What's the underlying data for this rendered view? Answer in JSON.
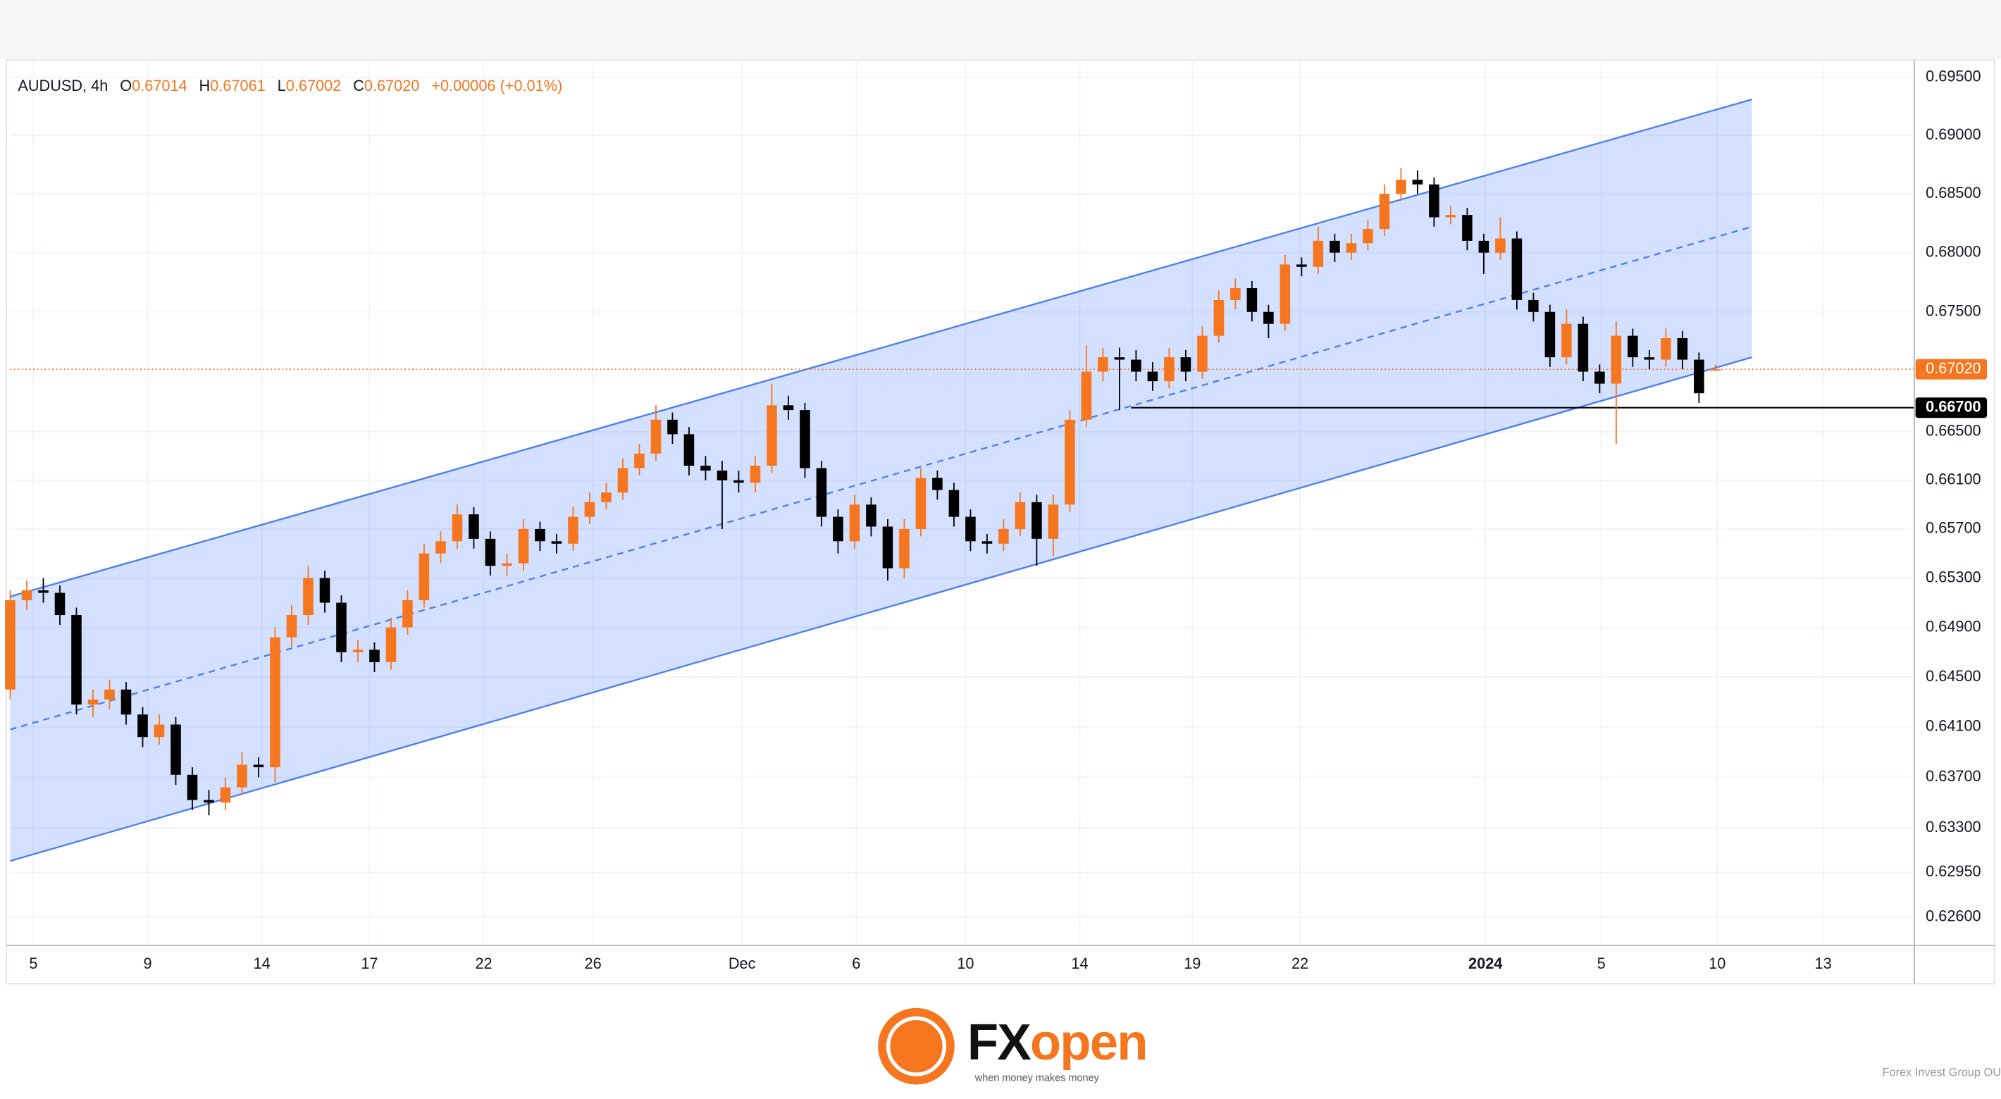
{
  "chart_data": {
    "type": "candlestick",
    "legend": {
      "symbol": "AUDUSD, 4h",
      "items": [
        {
          "key": "O",
          "value": "0.67014"
        },
        {
          "key": "H",
          "value": "0.67061"
        },
        {
          "key": "L",
          "value": "0.67002"
        },
        {
          "key": "C",
          "value": "0.67020"
        }
      ],
      "change": "+0.00006 (+0.01%)"
    },
    "x": [
      0,
      1,
      2,
      3,
      4,
      5,
      6,
      7,
      8,
      9,
      10,
      11,
      12,
      13,
      14,
      15,
      16,
      17,
      18,
      19,
      20,
      21,
      22,
      23,
      24,
      25,
      26,
      27,
      28,
      29,
      30,
      31,
      32,
      33,
      34,
      35,
      36,
      37,
      38,
      39,
      40,
      41,
      42,
      43,
      44,
      45,
      46,
      47,
      48,
      49,
      50,
      51,
      52,
      53,
      54,
      55,
      56,
      57,
      58,
      59,
      60,
      61,
      62,
      63,
      64,
      65,
      66,
      67,
      68,
      69,
      70,
      71,
      72,
      73,
      74,
      75,
      76,
      77,
      78,
      79,
      80,
      81,
      82,
      83,
      84,
      85,
      86,
      87,
      88,
      89,
      90,
      91,
      92,
      93,
      94,
      95,
      96,
      97,
      98,
      99,
      100,
      101,
      102,
      103
    ],
    "open": [
      0.644,
      0.6512,
      0.652,
      0.6518,
      0.65,
      0.6428,
      0.6432,
      0.644,
      0.642,
      0.6402,
      0.6412,
      0.6372,
      0.6352,
      0.635,
      0.6362,
      0.638,
      0.6378,
      0.6482,
      0.65,
      0.653,
      0.651,
      0.647,
      0.6472,
      0.6462,
      0.649,
      0.6512,
      0.655,
      0.656,
      0.6582,
      0.6562,
      0.654,
      0.6542,
      0.657,
      0.656,
      0.6558,
      0.658,
      0.6592,
      0.66,
      0.662,
      0.6632,
      0.666,
      0.6648,
      0.6622,
      0.6618,
      0.661,
      0.6608,
      0.6622,
      0.6672,
      0.6668,
      0.662,
      0.658,
      0.656,
      0.659,
      0.6572,
      0.6538,
      0.657,
      0.6612,
      0.6602,
      0.658,
      0.656,
      0.6558,
      0.657,
      0.6592,
      0.6562,
      0.659,
      0.666,
      0.67,
      0.6712,
      0.671,
      0.67,
      0.6692,
      0.6712,
      0.67,
      0.673,
      0.676,
      0.677,
      0.675,
      0.674,
      0.679,
      0.6788,
      0.681,
      0.68,
      0.6808,
      0.682,
      0.685,
      0.6862,
      0.6858,
      0.683,
      0.6832,
      0.681,
      0.68,
      0.6812,
      0.676,
      0.675,
      0.6712,
      0.674,
      0.67,
      0.669,
      0.673,
      0.6712,
      0.671,
      0.6728,
      0.671,
      0.67014
    ],
    "high": [
      0.652,
      0.6528,
      0.653,
      0.6524,
      0.6506,
      0.644,
      0.6448,
      0.6446,
      0.6426,
      0.642,
      0.6418,
      0.6378,
      0.636,
      0.637,
      0.639,
      0.6386,
      0.649,
      0.6508,
      0.654,
      0.6536,
      0.6516,
      0.648,
      0.6478,
      0.6498,
      0.652,
      0.6558,
      0.6568,
      0.659,
      0.6588,
      0.6568,
      0.655,
      0.6578,
      0.6576,
      0.6566,
      0.6588,
      0.66,
      0.6608,
      0.6628,
      0.664,
      0.6672,
      0.6666,
      0.6654,
      0.663,
      0.6626,
      0.6618,
      0.663,
      0.669,
      0.668,
      0.6674,
      0.6626,
      0.6586,
      0.6598,
      0.6596,
      0.6578,
      0.6578,
      0.662,
      0.6618,
      0.6608,
      0.6586,
      0.6566,
      0.6578,
      0.66,
      0.6598,
      0.6598,
      0.6668,
      0.6722,
      0.672,
      0.672,
      0.6718,
      0.6708,
      0.672,
      0.6718,
      0.6738,
      0.6768,
      0.6778,
      0.6776,
      0.6756,
      0.6798,
      0.6796,
      0.6822,
      0.6816,
      0.6816,
      0.6828,
      0.6858,
      0.6872,
      0.687,
      0.6864,
      0.684,
      0.6838,
      0.6816,
      0.683,
      0.6818,
      0.6766,
      0.6756,
      0.6752,
      0.6746,
      0.6706,
      0.6742,
      0.6736,
      0.6718,
      0.6736,
      0.6734,
      0.6716,
      0.67061
    ],
    "low": [
      0.6432,
      0.6504,
      0.651,
      0.6492,
      0.642,
      0.6418,
      0.6424,
      0.6412,
      0.6394,
      0.6396,
      0.6364,
      0.6344,
      0.634,
      0.6344,
      0.6356,
      0.637,
      0.6366,
      0.6474,
      0.6492,
      0.6502,
      0.6462,
      0.6462,
      0.6454,
      0.6456,
      0.6484,
      0.6506,
      0.6542,
      0.6554,
      0.6554,
      0.6532,
      0.6532,
      0.6536,
      0.6552,
      0.655,
      0.6552,
      0.6574,
      0.6586,
      0.6594,
      0.6614,
      0.6626,
      0.664,
      0.6614,
      0.661,
      0.657,
      0.66,
      0.66,
      0.6616,
      0.666,
      0.6612,
      0.6572,
      0.655,
      0.6554,
      0.6564,
      0.6528,
      0.653,
      0.6564,
      0.6594,
      0.6572,
      0.6552,
      0.655,
      0.6552,
      0.6564,
      0.654,
      0.6548,
      0.6584,
      0.6654,
      0.6692,
      0.6668,
      0.6692,
      0.6684,
      0.6686,
      0.6692,
      0.6694,
      0.6724,
      0.6752,
      0.6742,
      0.6728,
      0.6734,
      0.678,
      0.6782,
      0.6792,
      0.6794,
      0.6802,
      0.6814,
      0.6844,
      0.685,
      0.6822,
      0.6824,
      0.6802,
      0.6782,
      0.6794,
      0.6752,
      0.6742,
      0.6704,
      0.6706,
      0.6692,
      0.6682,
      0.664,
      0.6704,
      0.6702,
      0.6704,
      0.6702,
      0.6674,
      0.67002
    ],
    "close": [
      0.6512,
      0.652,
      0.6518,
      0.65,
      0.6428,
      0.6432,
      0.644,
      0.642,
      0.6402,
      0.6412,
      0.6372,
      0.6352,
      0.635,
      0.6362,
      0.638,
      0.6378,
      0.6482,
      0.65,
      0.653,
      0.651,
      0.647,
      0.6472,
      0.6462,
      0.649,
      0.6512,
      0.655,
      0.656,
      0.6582,
      0.6562,
      0.654,
      0.6542,
      0.657,
      0.656,
      0.6558,
      0.658,
      0.6592,
      0.66,
      0.662,
      0.6632,
      0.666,
      0.6648,
      0.6622,
      0.6618,
      0.661,
      0.6608,
      0.6622,
      0.6672,
      0.6668,
      0.662,
      0.658,
      0.656,
      0.659,
      0.6572,
      0.6538,
      0.657,
      0.6612,
      0.6602,
      0.658,
      0.656,
      0.6558,
      0.657,
      0.6592,
      0.6562,
      0.659,
      0.666,
      0.67,
      0.6712,
      0.671,
      0.67,
      0.6692,
      0.6712,
      0.67,
      0.673,
      0.676,
      0.677,
      0.675,
      0.674,
      0.679,
      0.6788,
      0.681,
      0.68,
      0.6808,
      0.682,
      0.685,
      0.6862,
      0.6858,
      0.683,
      0.6832,
      0.681,
      0.68,
      0.6812,
      0.676,
      0.675,
      0.6712,
      0.674,
      0.67,
      0.669,
      0.673,
      0.6712,
      0.671,
      0.6728,
      0.671,
      0.6682,
      0.6702
    ],
    "up_color": "#f5761e",
    "down_color": "#000000",
    "xlim": [
      0,
      115
    ],
    "xticks": [
      {
        "value": 1.4,
        "label": "5"
      },
      {
        "value": 8.3,
        "label": "9"
      },
      {
        "value": 15.2,
        "label": "14"
      },
      {
        "value": 21.7,
        "label": "17"
      },
      {
        "value": 28.6,
        "label": "22"
      },
      {
        "value": 35.2,
        "label": "26"
      },
      {
        "value": 44.2,
        "label": "Dec"
      },
      {
        "value": 51.1,
        "label": "6"
      },
      {
        "value": 57.7,
        "label": "10"
      },
      {
        "value": 64.6,
        "label": "14"
      },
      {
        "value": 71.4,
        "label": "19"
      },
      {
        "value": 77.9,
        "label": "22"
      },
      {
        "value": 89.1,
        "label": "2024",
        "bold": true
      },
      {
        "value": 96.1,
        "label": "5"
      },
      {
        "value": 103.1,
        "label": "10"
      },
      {
        "value": 109.5,
        "label": "13"
      }
    ],
    "ylim": [
      0.6238,
      0.6964
    ],
    "log_scale": true,
    "yticks": [
      {
        "value": 0.695,
        "label": "0.69500"
      },
      {
        "value": 0.69,
        "label": "0.69000"
      },
      {
        "value": 0.685,
        "label": "0.68500"
      },
      {
        "value": 0.68,
        "label": "0.68000"
      },
      {
        "value": 0.675,
        "label": "0.67500"
      },
      {
        "value": 0.665,
        "label": "0.66500"
      },
      {
        "value": 0.661,
        "label": "0.66100"
      },
      {
        "value": 0.657,
        "label": "0.65700"
      },
      {
        "value": 0.653,
        "label": "0.65300"
      },
      {
        "value": 0.649,
        "label": "0.64900"
      },
      {
        "value": 0.645,
        "label": "0.64500"
      },
      {
        "value": 0.641,
        "label": "0.64100"
      },
      {
        "value": 0.637,
        "label": "0.63700"
      },
      {
        "value": 0.633,
        "label": "0.63300"
      },
      {
        "value": 0.6295,
        "label": "0.62950"
      },
      {
        "value": 0.626,
        "label": "0.62600"
      }
    ],
    "grid": true,
    "channel": {
      "x": [
        0,
        105.2
      ],
      "upper": [
        0.6515,
        0.6931
      ],
      "middle": [
        0.6408,
        0.6822
      ],
      "lower": [
        0.6304,
        0.6712
      ],
      "color": "#4d7ef2",
      "fill": "rgba(41,98,255,0.2)"
    },
    "hline": {
      "x_start": 67.7,
      "value": 0.667,
      "label": "0.66700",
      "color": "#000000"
    },
    "last_price": {
      "value": 0.6702,
      "label": "0.67020",
      "color": "#f5761e"
    },
    "logo": {
      "brand_a": "FX",
      "brand_b": "open",
      "tagline": "when money makes money",
      "credit": "Forex Invest Group OU"
    }
  }
}
